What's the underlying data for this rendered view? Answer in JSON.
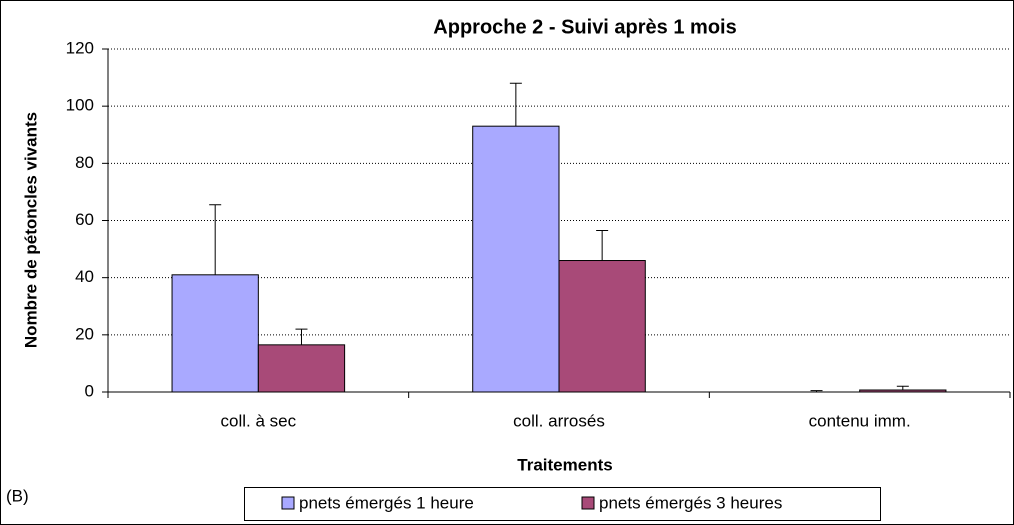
{
  "chart_data": {
    "type": "bar",
    "title": "Approche 2 - Suivi après 1 mois",
    "x_label": "Traitements",
    "y_label": "Nombre de pétoncles vivants",
    "annotation": "(B)",
    "categories": [
      "coll. à sec",
      "coll. arrosés",
      "contenu imm."
    ],
    "series": [
      {
        "name": "pnets émergés 1 heure",
        "color": "#a9a9ff",
        "values": [
          41,
          93,
          0
        ],
        "errors": [
          24.5,
          15,
          0.5
        ]
      },
      {
        "name": "pnets émergés 3 heures",
        "color": "#a84a78",
        "values": [
          16.5,
          46,
          0.7
        ],
        "errors": [
          5.5,
          10.5,
          1.3
        ]
      }
    ],
    "ylim": [
      0,
      120
    ],
    "yticks": [
      0,
      20,
      40,
      60,
      80,
      100,
      120
    ],
    "grid": true,
    "legend": "bottom"
  }
}
